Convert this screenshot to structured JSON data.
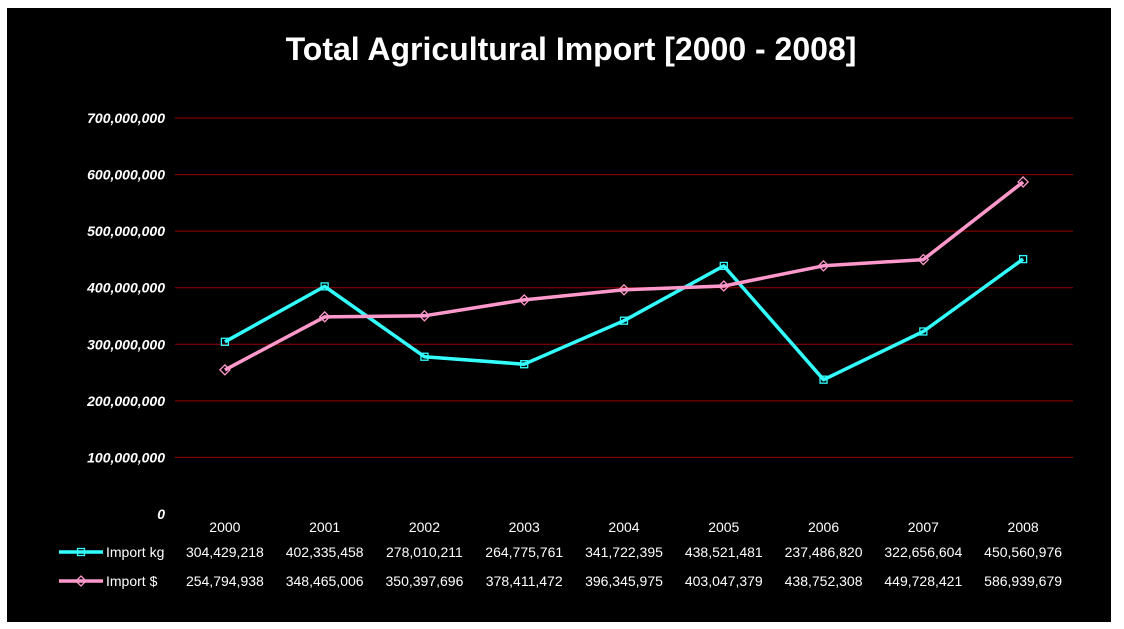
{
  "chart_data": {
    "type": "line",
    "title": "Total Agricultural Import [2000 - 2008]",
    "xlabel": "",
    "ylabel": "",
    "categories": [
      "2000",
      "2001",
      "2002",
      "2003",
      "2004",
      "2005",
      "2006",
      "2007",
      "2008"
    ],
    "ylim": [
      0,
      700000000
    ],
    "yticks": [
      0,
      100000000,
      200000000,
      300000000,
      400000000,
      500000000,
      600000000,
      700000000
    ],
    "ytick_labels": [
      "0",
      "100,000,000",
      "200,000,000",
      "300,000,000",
      "400,000,000",
      "500,000,000",
      "600,000,000",
      "700,000,000"
    ],
    "grid": true,
    "legend": "data table (bottom)",
    "series": [
      {
        "name": "Import kg",
        "color": "#33ffff",
        "marker": "square",
        "values": [
          304429218,
          402335458,
          278010211,
          264775761,
          341722395,
          438521481,
          237486820,
          322656604,
          450560976
        ],
        "labels": [
          "304,429,218",
          "402,335,458",
          "278,010,211",
          "264,775,761",
          "341,722,395",
          "438,521,481",
          "237,486,820",
          "322,656,604",
          "450,560,976"
        ]
      },
      {
        "name": "Import $",
        "color": "#ff99cc",
        "marker": "diamond",
        "values": [
          254794938,
          348465006,
          350397696,
          378411472,
          396345975,
          403047379,
          438752308,
          449728421,
          586939679
        ],
        "labels": [
          "254,794,938",
          "348,465,006",
          "350,397,696",
          "378,411,472",
          "396,345,975",
          "403,047,379",
          "438,752,308",
          "449,728,421",
          "586,939,679"
        ]
      }
    ],
    "colors": {
      "background": "#000000",
      "gridline": "#990000",
      "text": "#ffffff"
    }
  }
}
